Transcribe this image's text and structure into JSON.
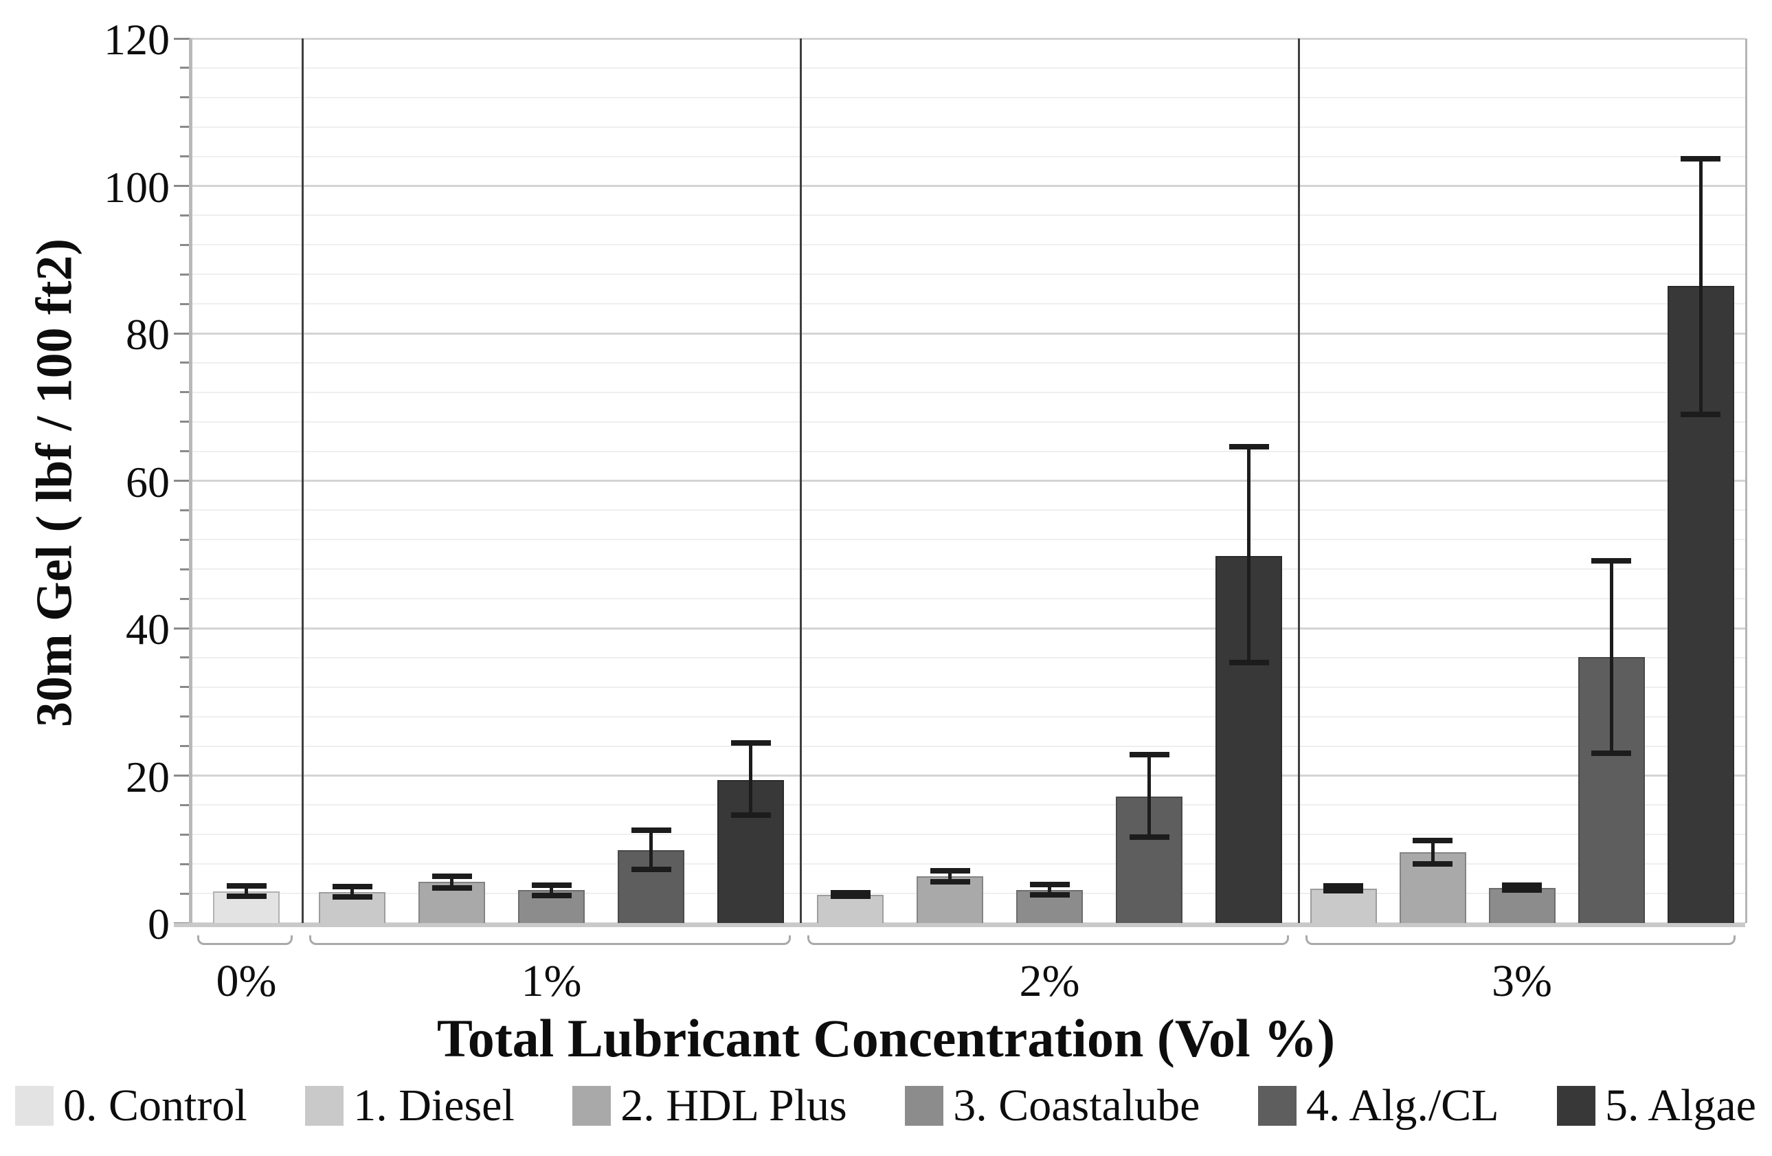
{
  "chart_data": {
    "type": "bar",
    "title": "",
    "xlabel": "Total Lubricant Concentration (Vol %)",
    "ylabel": "30m Gel ( lbf / 100 ft2)",
    "ylim": [
      0,
      120
    ],
    "y_major_step": 20,
    "y_minor_step": 4,
    "y_tick_labels": [
      "0",
      "20",
      "40",
      "60",
      "80",
      "100",
      "120"
    ],
    "grid": "horizontal, faint minor every 4 + light major every 20",
    "legend_position": "bottom",
    "error_bars": "plus-minus with wide caps",
    "groups": [
      {
        "label": "0%",
        "bars": [
          {
            "series": "0. Control",
            "value": 4.3,
            "err_low": 3.6,
            "err_high": 5.0
          }
        ]
      },
      {
        "label": "1%",
        "bars": [
          {
            "series": "1. Diesel",
            "value": 4.2,
            "err_low": 3.5,
            "err_high": 4.9
          },
          {
            "series": "2. HDL Plus",
            "value": 5.6,
            "err_low": 4.8,
            "err_high": 6.3
          },
          {
            "series": "3. Coastalube",
            "value": 4.5,
            "err_low": 3.7,
            "err_high": 5.1
          },
          {
            "series": "4. Alg./CL",
            "value": 9.9,
            "err_low": 7.3,
            "err_high": 12.6
          },
          {
            "series": "5. Algae",
            "value": 19.4,
            "err_low": 14.6,
            "err_high": 24.4
          }
        ]
      },
      {
        "label": "2%",
        "bars": [
          {
            "series": "1. Diesel",
            "value": 3.8,
            "err_low": 3.6,
            "err_high": 4.1
          },
          {
            "series": "2. HDL Plus",
            "value": 6.3,
            "err_low": 5.6,
            "err_high": 7.1
          },
          {
            "series": "3. Coastalube",
            "value": 4.5,
            "err_low": 3.8,
            "err_high": 5.2
          },
          {
            "series": "4. Alg./CL",
            "value": 17.2,
            "err_low": 11.7,
            "err_high": 22.8
          },
          {
            "series": "5. Algae",
            "value": 49.8,
            "err_low": 35.3,
            "err_high": 64.6
          }
        ]
      },
      {
        "label": "3%",
        "bars": [
          {
            "series": "1. Diesel",
            "value": 4.7,
            "err_low": 4.4,
            "err_high": 5.0
          },
          {
            "series": "2. HDL Plus",
            "value": 9.6,
            "err_low": 8.0,
            "err_high": 11.2
          },
          {
            "series": "3. Coastalube",
            "value": 4.8,
            "err_low": 4.5,
            "err_high": 5.1
          },
          {
            "series": "4. Alg./CL",
            "value": 36.1,
            "err_low": 23.0,
            "err_high": 49.1
          },
          {
            "series": "5. Algae",
            "value": 86.4,
            "err_low": 69.0,
            "err_high": 103.7
          }
        ]
      }
    ],
    "legend": [
      {
        "label": "0. Control",
        "color": "#e3e3e3"
      },
      {
        "label": "1. Diesel",
        "color": "#c9c9c9"
      },
      {
        "label": "2. HDL Plus",
        "color": "#a9a9a9"
      },
      {
        "label": "3. Coastalube",
        "color": "#8c8c8c"
      },
      {
        "label": "4. Alg./CL",
        "color": "#5e5e5e"
      },
      {
        "label": "5. Algae",
        "color": "#383838"
      }
    ]
  }
}
